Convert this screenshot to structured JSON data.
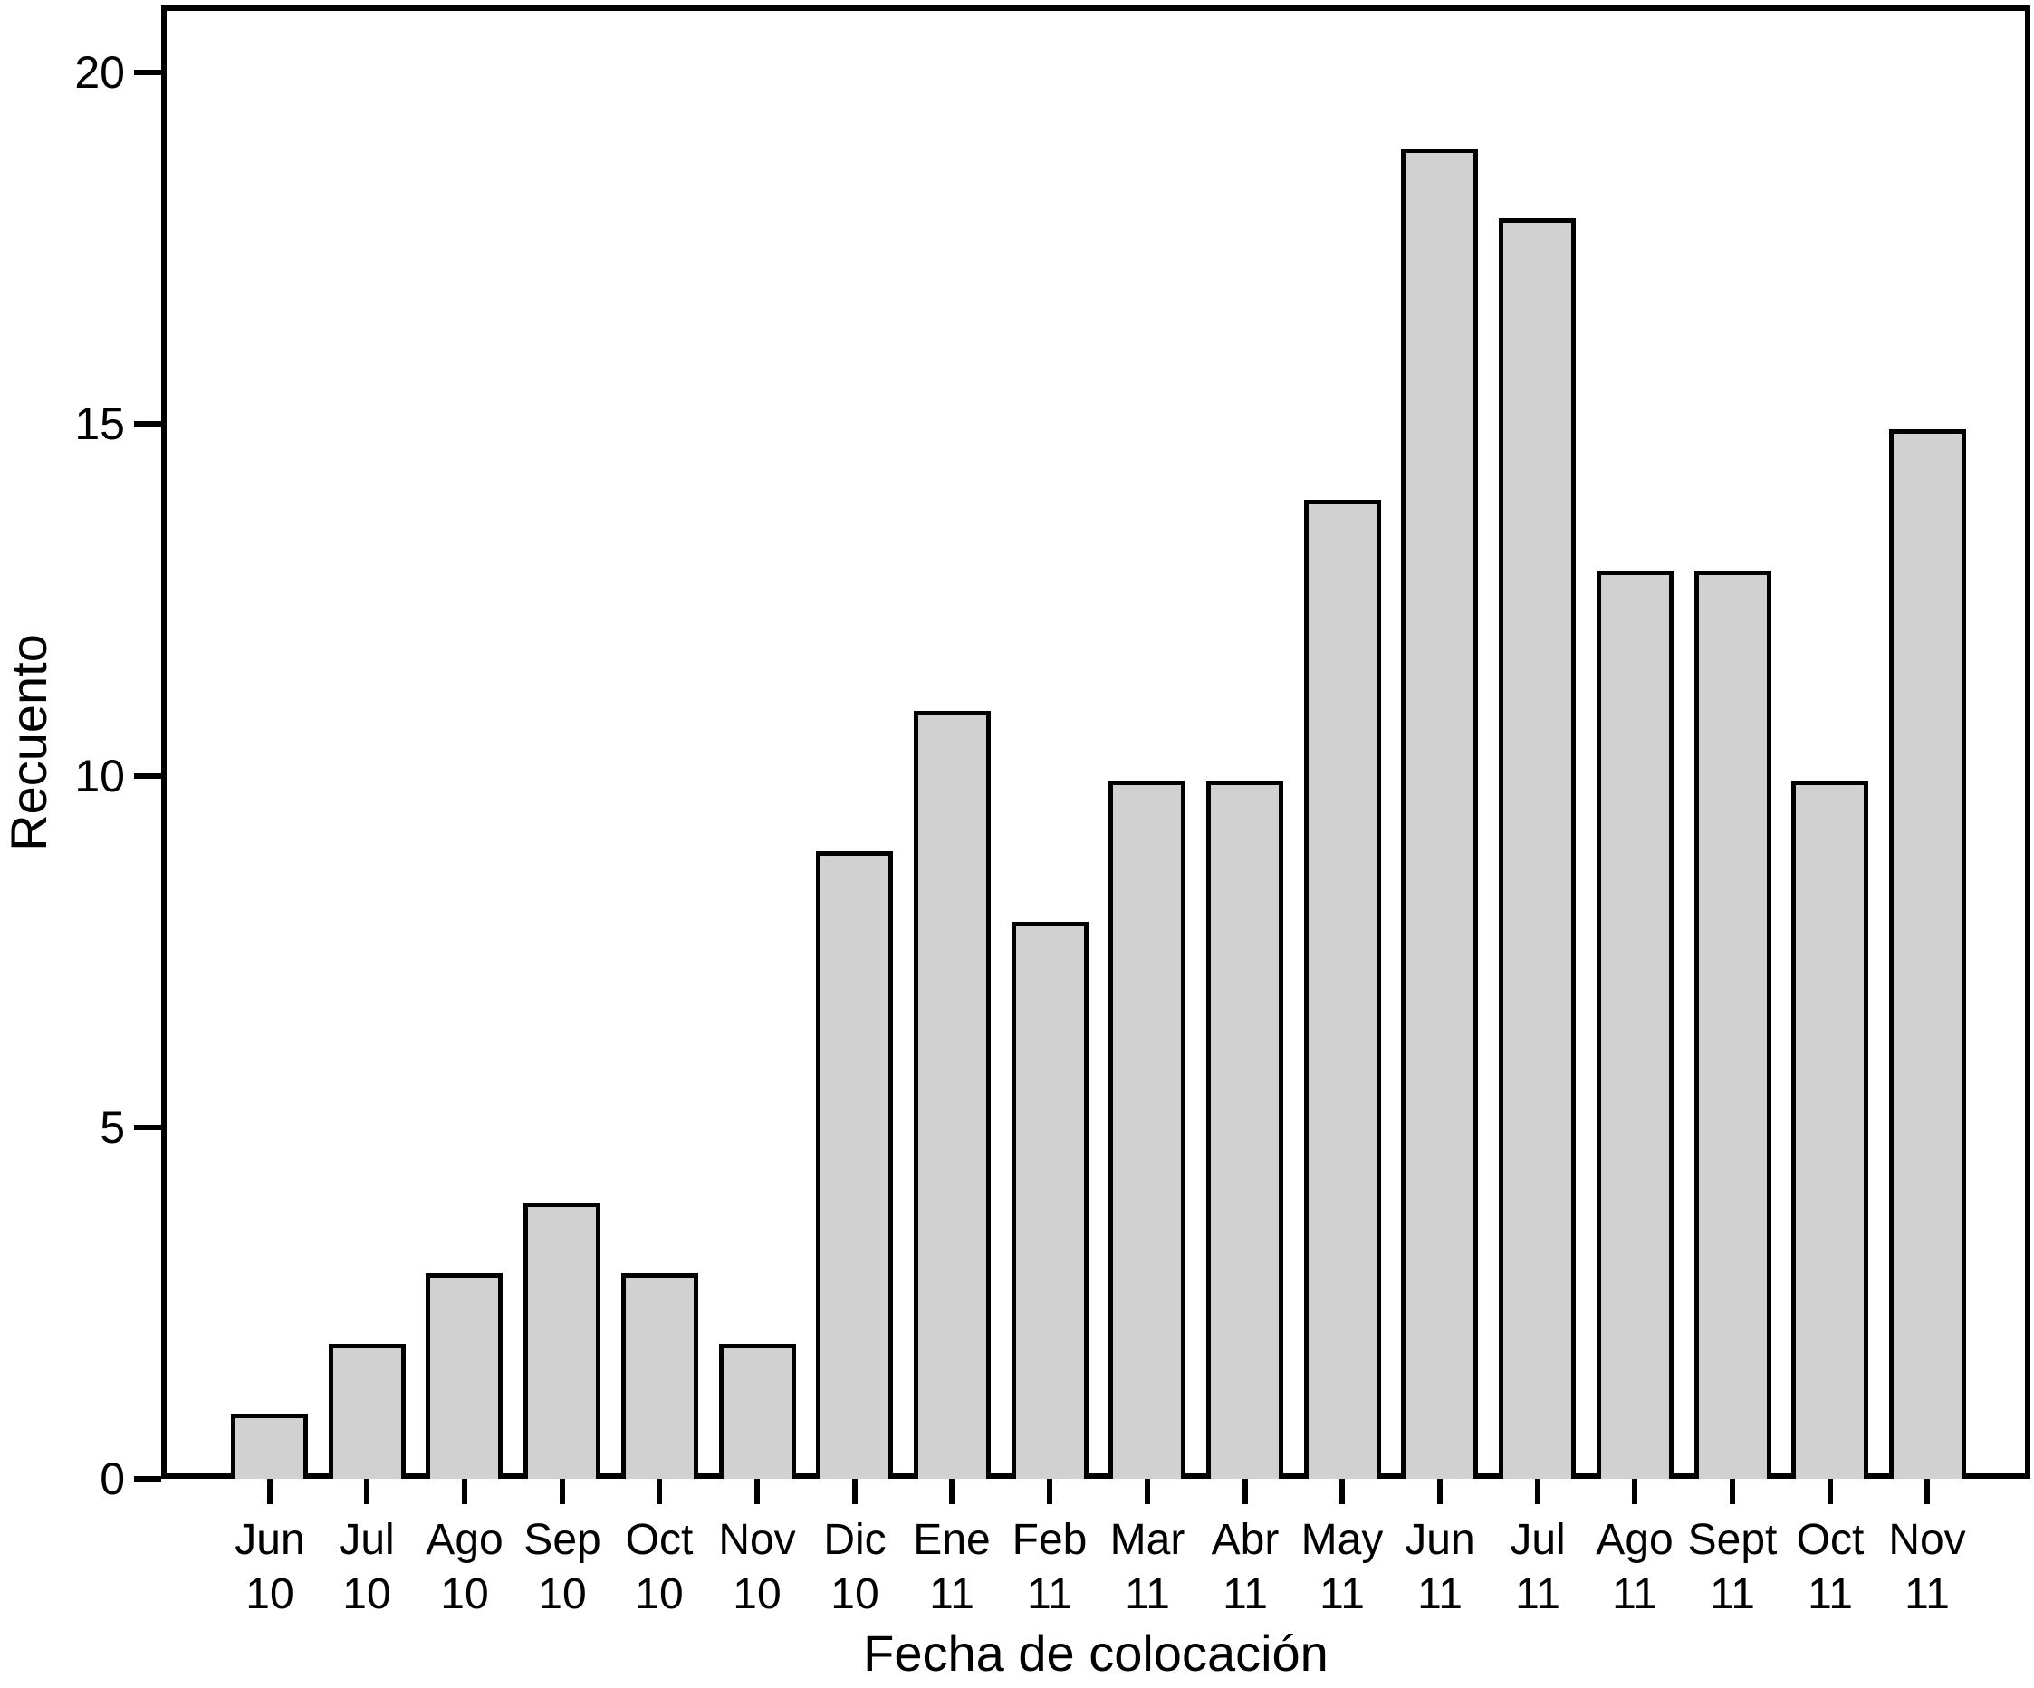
{
  "chart_data": {
    "type": "bar",
    "title": "",
    "xlabel": "Fecha de colocación",
    "ylabel": "Recuento",
    "categories": [
      "Jun 10",
      "Jul 10",
      "Ago 10",
      "Sep 10",
      "Oct 10",
      "Nov 10",
      "Dic 10",
      "Ene 11",
      "Feb 11",
      "Mar 11",
      "Abr 11",
      "May 11",
      "Jun 11",
      "Jul 11",
      "Ago 11",
      "Sept 11",
      "Oct 11",
      "Nov 11"
    ],
    "values": [
      1,
      2,
      3,
      4,
      3,
      2,
      9,
      11,
      8,
      10,
      10,
      14,
      19,
      18,
      13,
      13,
      10,
      15
    ],
    "yticks": [
      0,
      5,
      10,
      15,
      20
    ],
    "ylim": [
      0,
      21
    ],
    "grid": false,
    "legend": null,
    "bar_fill": "#d1d1d1",
    "bar_stroke": "#000000",
    "axis_color": "#000000"
  }
}
